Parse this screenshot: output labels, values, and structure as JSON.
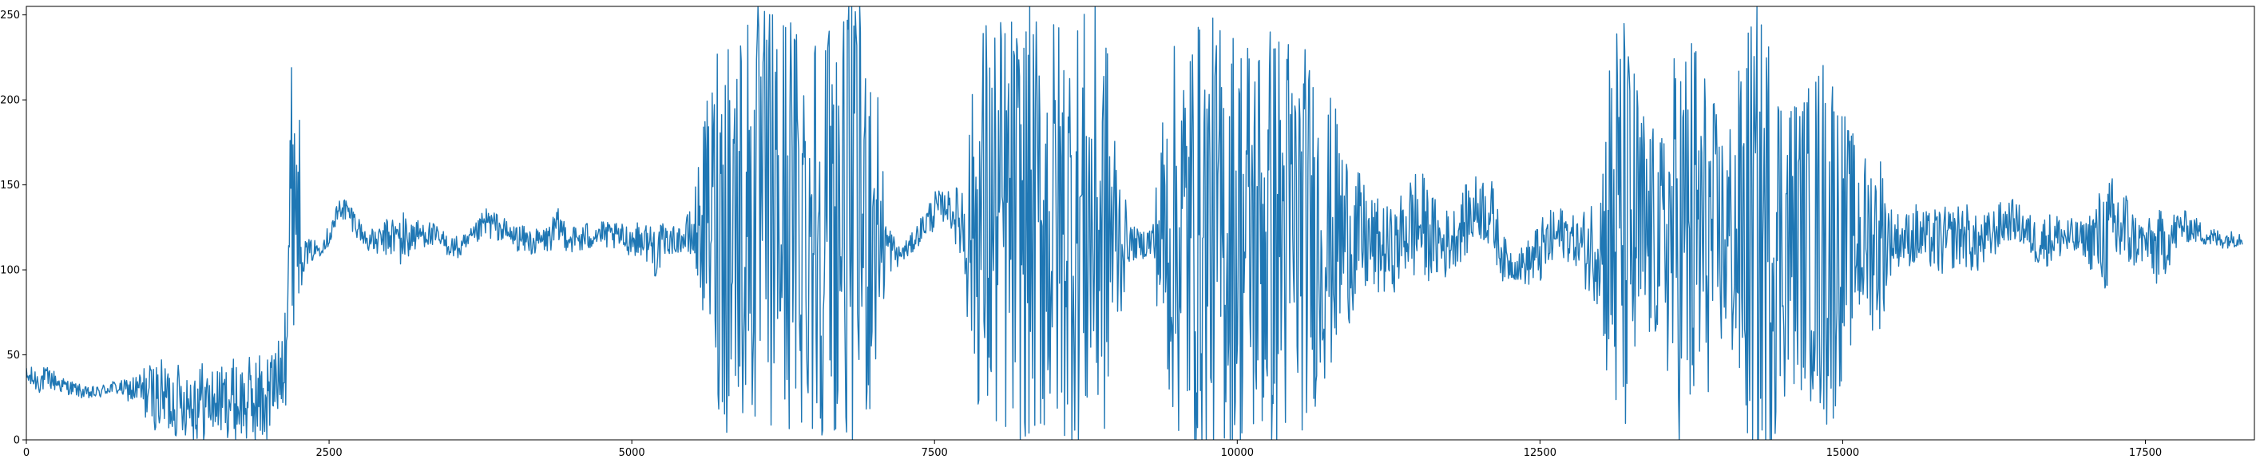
{
  "chart_data": {
    "type": "line",
    "title": "",
    "xlabel": "",
    "ylabel": "",
    "xlim": [
      0,
      18400
    ],
    "ylim": [
      0,
      255
    ],
    "grid": false,
    "legend": "none",
    "colors": {
      "line": "#1f77b4",
      "axes": "#000000",
      "background": "#ffffff"
    },
    "x_ticks": [
      0,
      2500,
      5000,
      7500,
      10000,
      12500,
      15000,
      17500
    ],
    "x_tick_labels": [
      "0",
      "2500",
      "5000",
      "7500",
      "10000",
      "12500",
      "15000",
      "17500"
    ],
    "y_ticks": [
      0,
      50,
      100,
      150,
      200,
      250
    ],
    "y_tick_labels": [
      "0",
      "50",
      "100",
      "150",
      "200",
      "250"
    ],
    "series": [
      {
        "x": [
          0,
          100,
          200,
          300,
          400,
          500,
          600,
          700,
          800,
          900,
          1000,
          1100,
          1200,
          1300,
          1400,
          1500,
          1600,
          1700,
          1800,
          1900,
          2000,
          2100,
          2150,
          2200,
          2250,
          2300,
          2400,
          2500,
          2600,
          2700,
          2800,
          2900,
          3000,
          3100,
          3200,
          3300,
          3400,
          3500,
          3600,
          3700,
          3800,
          3900,
          4000,
          4100,
          4200,
          4300,
          4400,
          4500,
          4600,
          4700,
          4800,
          4900,
          5000,
          5100,
          5200,
          5300,
          5400,
          5500,
          5600,
          5700,
          5800,
          5900,
          6000,
          6100,
          6200,
          6300,
          6400,
          6500,
          6600,
          6700,
          6800,
          6900,
          7000,
          7100,
          7200,
          7300,
          7400,
          7500,
          7600,
          7700,
          7800,
          7900,
          8000,
          8100,
          8200,
          8300,
          8400,
          8500,
          8600,
          8700,
          8800,
          8900,
          9000,
          9100,
          9200,
          9300,
          9400,
          9500,
          9600,
          9700,
          9800,
          9900,
          10000,
          10100,
          10200,
          10300,
          10400,
          10500,
          10600,
          10700,
          10800,
          10900,
          11000,
          11100,
          11200,
          11300,
          11400,
          11500,
          11600,
          11700,
          11800,
          11900,
          12000,
          12100,
          12200,
          12300,
          12400,
          12500,
          12600,
          12700,
          12800,
          12900,
          13000,
          13100,
          13200,
          13300,
          13400,
          13500,
          13600,
          13700,
          13800,
          13900,
          14000,
          14100,
          14200,
          14300,
          14400,
          14500,
          14600,
          14700,
          14800,
          14900,
          15000,
          15100,
          15200,
          15300,
          15400,
          15500,
          15600,
          15700,
          15800,
          15900,
          16000,
          16100,
          16200,
          16300,
          16400,
          16500,
          16600,
          16700,
          16800,
          16900,
          17000,
          17100,
          17200,
          17300,
          17400,
          17500,
          17600,
          17700,
          17800,
          17900,
          18000,
          18100,
          18200,
          18300,
          18400
        ],
        "center": [
          37,
          35,
          36,
          32,
          30,
          27,
          28,
          31,
          30,
          29,
          28,
          25,
          24,
          23,
          24,
          22,
          23,
          24,
          22,
          23,
          25,
          40,
          80,
          160,
          140,
          110,
          112,
          120,
          138,
          130,
          118,
          116,
          120,
          118,
          120,
          122,
          118,
          114,
          112,
          120,
          128,
          125,
          120,
          118,
          116,
          118,
          125,
          118,
          118,
          122,
          120,
          119,
          118,
          118,
          112,
          117,
          118,
          120,
          130,
          130,
          130,
          130,
          130,
          130,
          130,
          130,
          130,
          130,
          130,
          130,
          130,
          130,
          130,
          115,
          108,
          114,
          125,
          135,
          138,
          130,
          125,
          125,
          125,
          125,
          125,
          125,
          125,
          125,
          125,
          125,
          125,
          125,
          118,
          116,
          115,
          117,
          120,
          120,
          120,
          120,
          120,
          120,
          120,
          120,
          120,
          120,
          120,
          120,
          120,
          120,
          120,
          120,
          118,
          115,
          112,
          111,
          125,
          127,
          120,
          114,
          120,
          130,
          138,
          132,
          106,
          102,
          104,
          110,
          118,
          122,
          116,
          112,
          118,
          122,
          120,
          118,
          118,
          118,
          118,
          118,
          118,
          118,
          118,
          118,
          118,
          118,
          118,
          118,
          118,
          118,
          118,
          118,
          118,
          118,
          118,
          118,
          118,
          118,
          120,
          118,
          116,
          118,
          122,
          114,
          118,
          126,
          130,
          124,
          116,
          118,
          120,
          118,
          118,
          118,
          119,
          126,
          118,
          116,
          112,
          118,
          126,
          124,
          120,
          118,
          118,
          119,
          119
        ],
        "noise_half_range": [
          6,
          8,
          7,
          5,
          4,
          4,
          4,
          4,
          5,
          10,
          18,
          22,
          24,
          20,
          26,
          22,
          20,
          24,
          26,
          28,
          30,
          20,
          60,
          95,
          60,
          8,
          6,
          6,
          8,
          8,
          6,
          8,
          12,
          18,
          10,
          8,
          8,
          6,
          8,
          6,
          10,
          8,
          8,
          8,
          8,
          8,
          12,
          8,
          10,
          8,
          8,
          8,
          10,
          10,
          18,
          8,
          8,
          18,
          60,
          115,
          130,
          130,
          130,
          130,
          130,
          130,
          130,
          130,
          130,
          130,
          130,
          130,
          120,
          20,
          6,
          6,
          8,
          12,
          8,
          20,
          75,
          130,
          130,
          130,
          130,
          130,
          130,
          130,
          130,
          130,
          130,
          130,
          70,
          12,
          8,
          12,
          90,
          120,
          130,
          130,
          130,
          130,
          130,
          130,
          130,
          130,
          130,
          120,
          110,
          90,
          80,
          55,
          40,
          30,
          28,
          24,
          30,
          36,
          26,
          22,
          18,
          22,
          20,
          22,
          14,
          8,
          14,
          20,
          18,
          16,
          14,
          28,
          40,
          140,
          130,
          100,
          70,
          60,
          110,
          130,
          130,
          90,
          70,
          80,
          130,
          140,
          130,
          100,
          90,
          90,
          110,
          120,
          80,
          60,
          50,
          60,
          20,
          14,
          20,
          16,
          22,
          18,
          20,
          18,
          16,
          14,
          12,
          12,
          14,
          16,
          14,
          12,
          10,
          28,
          36,
          32,
          18,
          12,
          24,
          16,
          10,
          8,
          6,
          6,
          5,
          5
        ]
      }
    ]
  }
}
